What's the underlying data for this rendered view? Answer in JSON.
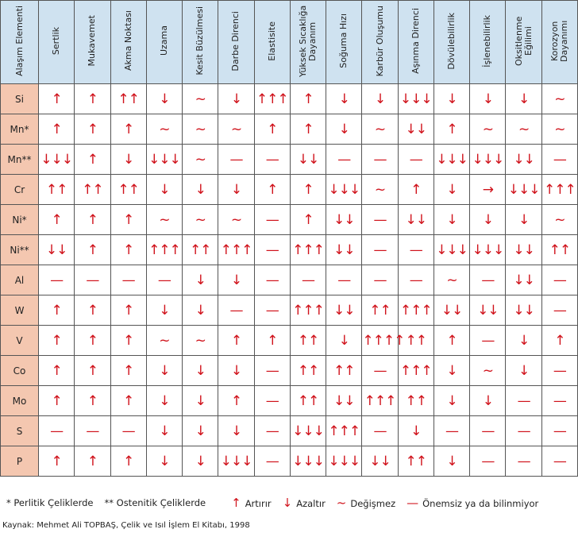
{
  "table": {
    "corner": "Alaşım Elementi",
    "columns": [
      "Sertlik",
      "Mukavemet",
      "Akma Noktası",
      "Uzama",
      "Kesit Büzülmesi",
      "Darbe Direnci",
      "Elastisite",
      "Yüksek Sıcaklığa Dayanım",
      "Soğuma Hızı",
      "Karbür Oluşumu",
      "Aşınma Direnci",
      "Dövülebilirlik",
      "İşlenebilirlik",
      "Oksitlenme Eğilimi",
      "Korozyon Dayanımı"
    ],
    "rows": [
      {
        "label": "Si",
        "cells": [
          "↑",
          "↑",
          "↑↑",
          "↓",
          "~",
          "↓",
          "↑↑↑",
          "↑",
          "↓",
          "↓",
          "↓↓↓",
          "↓",
          "↓",
          "↓",
          "~"
        ]
      },
      {
        "label": "Mn*",
        "cells": [
          "↑",
          "↑",
          "↑",
          "~",
          "~",
          "~",
          "↑",
          "↑",
          "↓",
          "~",
          "↓↓",
          "↑",
          "~",
          "~",
          "~"
        ]
      },
      {
        "label": "Mn**",
        "cells": [
          "↓↓↓",
          "↑",
          "↓",
          "↓↓↓",
          "~",
          "—",
          "—",
          "↓↓",
          "—",
          "—",
          "—",
          "↓↓↓",
          "↓↓↓",
          "↓↓",
          "—"
        ]
      },
      {
        "label": "Cr",
        "cells": [
          "↑↑",
          "↑↑",
          "↑↑",
          "↓",
          "↓",
          "↓",
          "↑",
          "↑",
          "↓↓↓",
          "~",
          "↑",
          "↓",
          "→",
          "↓↓↓",
          "↑↑↑"
        ]
      },
      {
        "label": "Ni*",
        "cells": [
          "↑",
          "↑",
          "↑",
          "~",
          "~",
          "~",
          "—",
          "↑",
          "↓↓",
          "—",
          "↓↓",
          "↓",
          "↓",
          "↓",
          "~"
        ]
      },
      {
        "label": "Ni**",
        "cells": [
          "↓↓",
          "↑",
          "↑",
          "↑↑↑",
          "↑↑",
          "↑↑↑",
          "—",
          "↑↑↑",
          "↓↓",
          "—",
          "—",
          "↓↓↓",
          "↓↓↓",
          "↓↓",
          "↑↑"
        ]
      },
      {
        "label": "Al",
        "cells": [
          "—",
          "—",
          "—",
          "—",
          "↓",
          "↓",
          "—",
          "—",
          "—",
          "—",
          "—",
          "~",
          "—",
          "↓↓",
          "—"
        ]
      },
      {
        "label": "W",
        "cells": [
          "↑",
          "↑",
          "↑",
          "↓",
          "↓",
          "—",
          "—",
          "↑↑↑",
          "↓↓",
          "↑↑",
          "↑↑↑",
          "↓↓",
          "↓↓",
          "↓↓",
          "—"
        ]
      },
      {
        "label": "V",
        "cells": [
          "↑",
          "↑",
          "↑",
          "~",
          "~",
          "↑",
          "↑",
          "↑↑",
          "↓",
          "↑↑↑↑",
          "↑↑",
          "↑",
          "—",
          "↓",
          "↑"
        ]
      },
      {
        "label": "Co",
        "cells": [
          "↑",
          "↑",
          "↑",
          "↓",
          "↓",
          "↓",
          "—",
          "↑↑",
          "↑↑",
          "—",
          "↑↑↑",
          "↓",
          "~",
          "↓",
          "—"
        ]
      },
      {
        "label": "Mo",
        "cells": [
          "↑",
          "↑",
          "↑",
          "↓",
          "↓",
          "↑",
          "—",
          "↑↑",
          "↓↓",
          "↑↑↑",
          "↑↑",
          "↓",
          "↓",
          "—",
          "—"
        ]
      },
      {
        "label": "S",
        "cells": [
          "—",
          "—",
          "—",
          "↓",
          "↓",
          "↓",
          "—",
          "↓↓↓",
          "↑↑↑",
          "—",
          "↓",
          "—",
          "—",
          "—",
          "—"
        ]
      },
      {
        "label": "P",
        "cells": [
          "↑",
          "↑",
          "↑",
          "↓",
          "↓",
          "↓↓↓",
          "—",
          "↓↓↓",
          "↓↓↓",
          "↓↓",
          "↑↑",
          "↓",
          "—",
          "—",
          "—"
        ]
      }
    ]
  },
  "legend": {
    "notes": [
      "* Perlitik Çeliklerde",
      "** Ostenitik Çeliklerde"
    ],
    "items": [
      {
        "symbol": "↑",
        "label": "Artırır"
      },
      {
        "symbol": "↓",
        "label": "Azaltır"
      },
      {
        "symbol": "~",
        "label": "Değişmez"
      },
      {
        "symbol": "—",
        "label": "Önemsiz ya da bilinmiyor"
      }
    ]
  },
  "source": "Kaynak: Mehmet Ali TOPBAŞ, Çelik ve Isıl İşlem El Kitabı, 1998"
}
